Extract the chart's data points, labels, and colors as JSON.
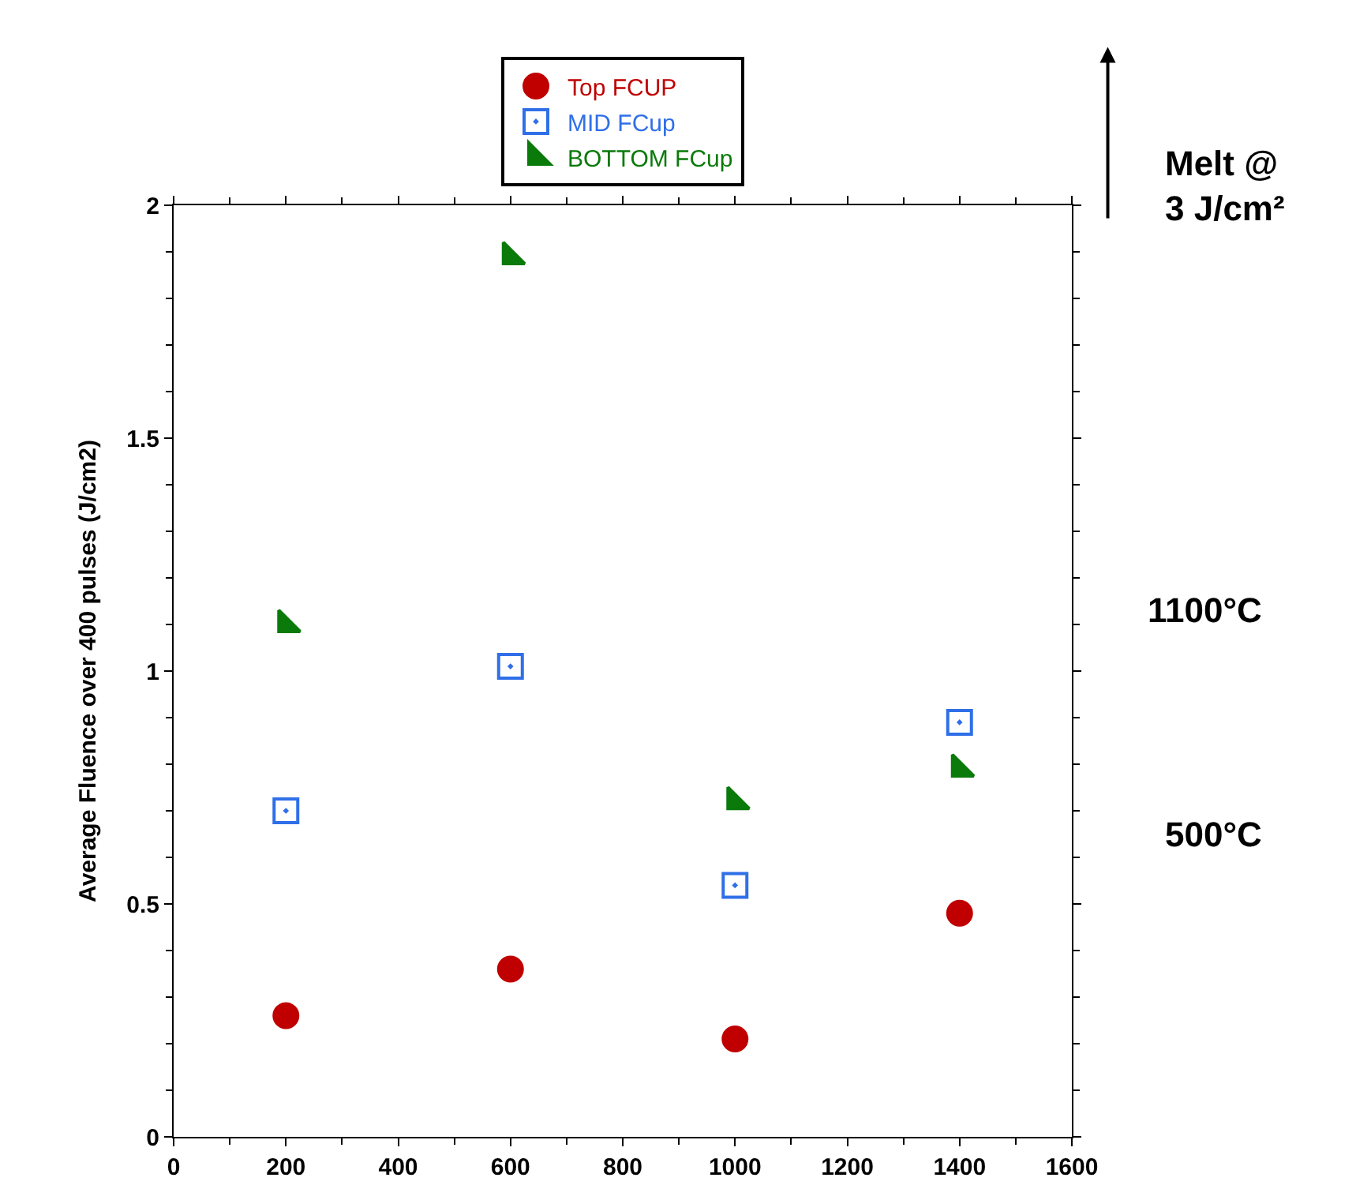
{
  "chart_data": {
    "type": "scatter",
    "ylabel": "Average Fluence over 400 pulses (J/cm2)",
    "x": [
      200,
      600,
      1000,
      1400
    ],
    "series": [
      {
        "name": "Top FCUP",
        "color": "#c00000",
        "marker": "circle",
        "values": [
          0.26,
          0.36,
          0.21,
          0.48
        ]
      },
      {
        "name": "MID FCup",
        "color": "#2f6fe8",
        "marker": "square",
        "values": [
          0.7,
          1.01,
          0.54,
          0.89
        ]
      },
      {
        "name": "BOTTOM FCup",
        "color": "#0a7a0a",
        "marker": "triangle",
        "values": [
          1.1,
          1.89,
          0.72,
          0.79
        ]
      }
    ],
    "xlim": [
      0,
      1600
    ],
    "xticks": [
      0,
      200,
      400,
      600,
      800,
      1000,
      1200,
      1400,
      1600
    ],
    "ylim": [
      0,
      2
    ],
    "yticks": [
      0,
      0.5,
      1,
      1.5,
      2
    ],
    "grid": false,
    "legend": "top",
    "annotations": [
      "Melt @ 3 J/cm²",
      "1100°C",
      "500°C"
    ]
  }
}
